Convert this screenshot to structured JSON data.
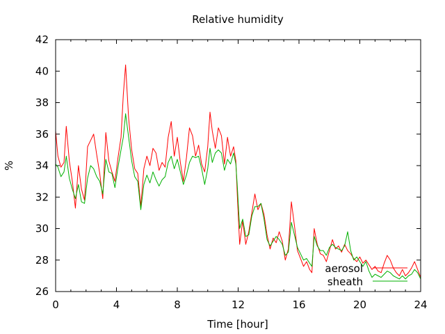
{
  "chart_data": {
    "type": "line",
    "title": "Relative humidity",
    "xlabel": "Time [hour]",
    "ylabel": "%",
    "xlim": [
      0,
      24
    ],
    "ylim": [
      26,
      42
    ],
    "xticks": [
      0,
      4,
      8,
      12,
      16,
      20,
      24
    ],
    "yticks": [
      26,
      28,
      30,
      32,
      34,
      36,
      38,
      40,
      42
    ],
    "grid": false,
    "legend_position": "bottom-right",
    "series": [
      {
        "name": "aerosol",
        "color": "#ff0000",
        "points": [
          [
            0.0,
            36.2
          ],
          [
            0.15,
            34.6
          ],
          [
            0.35,
            33.9
          ],
          [
            0.55,
            34.2
          ],
          [
            0.7,
            36.5
          ],
          [
            0.9,
            34.3
          ],
          [
            1.1,
            33.0
          ],
          [
            1.3,
            31.3
          ],
          [
            1.5,
            34.0
          ],
          [
            1.7,
            32.5
          ],
          [
            1.9,
            31.8
          ],
          [
            2.1,
            35.2
          ],
          [
            2.3,
            35.6
          ],
          [
            2.5,
            36.0
          ],
          [
            2.7,
            34.7
          ],
          [
            2.9,
            33.5
          ],
          [
            3.1,
            31.9
          ],
          [
            3.3,
            36.1
          ],
          [
            3.5,
            34.3
          ],
          [
            3.7,
            33.6
          ],
          [
            3.9,
            33.0
          ],
          [
            4.1,
            34.5
          ],
          [
            4.3,
            35.8
          ],
          [
            4.45,
            38.5
          ],
          [
            4.6,
            40.4
          ],
          [
            4.8,
            37.0
          ],
          [
            5.0,
            35.0
          ],
          [
            5.2,
            33.8
          ],
          [
            5.4,
            33.5
          ],
          [
            5.6,
            31.4
          ],
          [
            5.8,
            33.8
          ],
          [
            6.0,
            34.6
          ],
          [
            6.2,
            34.0
          ],
          [
            6.4,
            35.1
          ],
          [
            6.6,
            34.8
          ],
          [
            6.8,
            33.7
          ],
          [
            7.0,
            34.2
          ],
          [
            7.2,
            33.9
          ],
          [
            7.4,
            35.8
          ],
          [
            7.6,
            36.8
          ],
          [
            7.8,
            34.6
          ],
          [
            8.0,
            35.8
          ],
          [
            8.2,
            34.2
          ],
          [
            8.4,
            33.0
          ],
          [
            8.6,
            34.5
          ],
          [
            8.8,
            36.4
          ],
          [
            9.0,
            35.9
          ],
          [
            9.2,
            34.6
          ],
          [
            9.4,
            35.3
          ],
          [
            9.6,
            34.1
          ],
          [
            9.8,
            33.6
          ],
          [
            10.0,
            35.2
          ],
          [
            10.15,
            37.4
          ],
          [
            10.3,
            36.2
          ],
          [
            10.5,
            35.1
          ],
          [
            10.7,
            36.4
          ],
          [
            10.9,
            35.9
          ],
          [
            11.1,
            34.1
          ],
          [
            11.3,
            35.8
          ],
          [
            11.5,
            34.6
          ],
          [
            11.7,
            35.2
          ],
          [
            11.85,
            34.3
          ],
          [
            11.95,
            32.0
          ],
          [
            12.1,
            29.0
          ],
          [
            12.3,
            30.5
          ],
          [
            12.5,
            29.0
          ],
          [
            12.7,
            29.8
          ],
          [
            12.9,
            31.0
          ],
          [
            13.1,
            32.2
          ],
          [
            13.3,
            31.2
          ],
          [
            13.5,
            31.6
          ],
          [
            13.7,
            30.9
          ],
          [
            13.9,
            29.6
          ],
          [
            14.1,
            28.7
          ],
          [
            14.3,
            29.4
          ],
          [
            14.5,
            29.1
          ],
          [
            14.7,
            29.8
          ],
          [
            14.9,
            29.2
          ],
          [
            15.1,
            28.0
          ],
          [
            15.3,
            28.7
          ],
          [
            15.5,
            31.7
          ],
          [
            15.7,
            30.2
          ],
          [
            15.9,
            28.6
          ],
          [
            16.1,
            28.1
          ],
          [
            16.3,
            27.6
          ],
          [
            16.5,
            27.9
          ],
          [
            16.7,
            27.4
          ],
          [
            16.85,
            27.2
          ],
          [
            17.0,
            30.0
          ],
          [
            17.2,
            29.0
          ],
          [
            17.4,
            28.4
          ],
          [
            17.6,
            28.3
          ],
          [
            17.8,
            27.9
          ],
          [
            18.0,
            28.6
          ],
          [
            18.2,
            29.3
          ],
          [
            18.4,
            28.7
          ],
          [
            18.6,
            28.9
          ],
          [
            18.8,
            28.5
          ],
          [
            19.0,
            29.0
          ],
          [
            19.2,
            28.6
          ],
          [
            19.4,
            28.4
          ],
          [
            19.6,
            28.1
          ],
          [
            19.8,
            27.9
          ],
          [
            20.0,
            28.2
          ],
          [
            20.2,
            27.8
          ],
          [
            20.4,
            28.0
          ],
          [
            20.6,
            27.7
          ],
          [
            20.8,
            27.4
          ],
          [
            21.0,
            27.6
          ],
          [
            21.2,
            27.3
          ],
          [
            21.4,
            27.2
          ],
          [
            21.6,
            27.8
          ],
          [
            21.8,
            28.3
          ],
          [
            22.0,
            28.0
          ],
          [
            22.2,
            27.5
          ],
          [
            22.4,
            27.2
          ],
          [
            22.6,
            27.0
          ],
          [
            22.8,
            27.4
          ],
          [
            23.0,
            27.0
          ],
          [
            23.2,
            27.2
          ],
          [
            23.4,
            27.5
          ],
          [
            23.6,
            27.9
          ],
          [
            23.8,
            27.4
          ],
          [
            24.0,
            26.9
          ]
        ]
      },
      {
        "name": "sheath",
        "color": "#00b000",
        "points": [
          [
            0.0,
            34.1
          ],
          [
            0.15,
            33.9
          ],
          [
            0.35,
            33.3
          ],
          [
            0.55,
            33.6
          ],
          [
            0.7,
            34.6
          ],
          [
            0.9,
            33.2
          ],
          [
            1.1,
            32.5
          ],
          [
            1.3,
            31.9
          ],
          [
            1.5,
            32.8
          ],
          [
            1.7,
            31.7
          ],
          [
            1.9,
            31.6
          ],
          [
            2.1,
            33.2
          ],
          [
            2.3,
            34.0
          ],
          [
            2.5,
            33.8
          ],
          [
            2.7,
            33.3
          ],
          [
            2.9,
            33.0
          ],
          [
            3.1,
            32.2
          ],
          [
            3.3,
            34.4
          ],
          [
            3.5,
            33.6
          ],
          [
            3.7,
            33.5
          ],
          [
            3.9,
            32.6
          ],
          [
            4.1,
            33.9
          ],
          [
            4.3,
            35.0
          ],
          [
            4.45,
            35.8
          ],
          [
            4.6,
            37.3
          ],
          [
            4.8,
            35.8
          ],
          [
            5.0,
            34.3
          ],
          [
            5.2,
            33.3
          ],
          [
            5.4,
            33.0
          ],
          [
            5.6,
            31.2
          ],
          [
            5.8,
            32.8
          ],
          [
            6.0,
            33.4
          ],
          [
            6.2,
            32.9
          ],
          [
            6.4,
            33.6
          ],
          [
            6.6,
            33.1
          ],
          [
            6.8,
            32.7
          ],
          [
            7.0,
            33.1
          ],
          [
            7.2,
            33.3
          ],
          [
            7.4,
            34.2
          ],
          [
            7.6,
            34.6
          ],
          [
            7.8,
            33.8
          ],
          [
            8.0,
            34.4
          ],
          [
            8.2,
            33.6
          ],
          [
            8.4,
            32.8
          ],
          [
            8.6,
            33.4
          ],
          [
            8.8,
            34.2
          ],
          [
            9.0,
            34.6
          ],
          [
            9.2,
            34.5
          ],
          [
            9.4,
            34.6
          ],
          [
            9.6,
            33.8
          ],
          [
            9.8,
            32.8
          ],
          [
            10.0,
            33.8
          ],
          [
            10.15,
            35.1
          ],
          [
            10.3,
            34.2
          ],
          [
            10.5,
            34.8
          ],
          [
            10.7,
            35.0
          ],
          [
            10.9,
            34.8
          ],
          [
            11.1,
            33.7
          ],
          [
            11.3,
            34.4
          ],
          [
            11.5,
            34.1
          ],
          [
            11.7,
            34.8
          ],
          [
            11.85,
            34.1
          ],
          [
            11.95,
            32.6
          ],
          [
            12.1,
            30.0
          ],
          [
            12.3,
            30.6
          ],
          [
            12.5,
            29.5
          ],
          [
            12.7,
            29.6
          ],
          [
            12.9,
            30.8
          ],
          [
            13.1,
            31.4
          ],
          [
            13.3,
            31.4
          ],
          [
            13.5,
            31.6
          ],
          [
            13.7,
            30.6
          ],
          [
            13.9,
            29.3
          ],
          [
            14.1,
            28.9
          ],
          [
            14.3,
            29.2
          ],
          [
            14.5,
            29.5
          ],
          [
            14.7,
            29.3
          ],
          [
            14.9,
            29.0
          ],
          [
            15.1,
            28.3
          ],
          [
            15.3,
            28.5
          ],
          [
            15.5,
            30.4
          ],
          [
            15.7,
            29.6
          ],
          [
            15.9,
            28.8
          ],
          [
            16.1,
            28.4
          ],
          [
            16.3,
            28.0
          ],
          [
            16.5,
            28.1
          ],
          [
            16.7,
            27.8
          ],
          [
            16.85,
            27.6
          ],
          [
            17.0,
            29.5
          ],
          [
            17.2,
            28.9
          ],
          [
            17.4,
            28.6
          ],
          [
            17.6,
            28.6
          ],
          [
            17.8,
            28.3
          ],
          [
            18.0,
            28.8
          ],
          [
            18.2,
            29.0
          ],
          [
            18.4,
            28.8
          ],
          [
            18.6,
            28.7
          ],
          [
            18.8,
            28.6
          ],
          [
            19.0,
            28.9
          ],
          [
            19.2,
            29.8
          ],
          [
            19.4,
            28.6
          ],
          [
            19.6,
            28.0
          ],
          [
            19.8,
            28.2
          ],
          [
            20.0,
            27.9
          ],
          [
            20.2,
            27.6
          ],
          [
            20.4,
            27.9
          ],
          [
            20.6,
            27.3
          ],
          [
            20.8,
            26.9
          ],
          [
            21.0,
            27.1
          ],
          [
            21.2,
            27.0
          ],
          [
            21.4,
            26.9
          ],
          [
            21.6,
            27.1
          ],
          [
            21.8,
            27.3
          ],
          [
            22.0,
            27.2
          ],
          [
            22.2,
            27.0
          ],
          [
            22.4,
            26.9
          ],
          [
            22.6,
            26.8
          ],
          [
            22.8,
            27.0
          ],
          [
            23.0,
            26.8
          ],
          [
            23.2,
            27.0
          ],
          [
            23.4,
            27.1
          ],
          [
            23.6,
            27.4
          ],
          [
            23.8,
            27.2
          ],
          [
            24.0,
            26.8
          ]
        ]
      }
    ]
  }
}
